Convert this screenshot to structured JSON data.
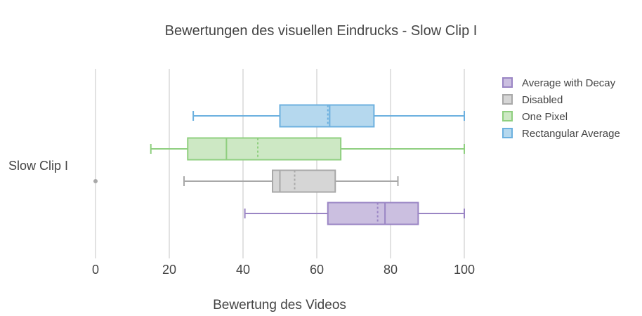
{
  "chart_data": {
    "type": "box",
    "orientation": "horizontal",
    "title": "Bewertungen des visuellen Eindrucks - Slow Clip I",
    "xlabel": "Bewertung des Videos",
    "ylabel": "",
    "category": "Slow Clip I",
    "xlim": [
      0,
      100
    ],
    "xticks": [
      0,
      20,
      40,
      60,
      80,
      100
    ],
    "grid": true,
    "legend_position": "top-right",
    "series": [
      {
        "name": "Average with Decay",
        "color": "#9a85c4",
        "fill": "#cbbfe0",
        "min": 40.5,
        "q1": 63,
        "median": 78.5,
        "mean": 76.5,
        "q3": 87.5,
        "max": 100,
        "outliers": []
      },
      {
        "name": "Disabled",
        "color": "#a8a8a8",
        "fill": "#d6d6d6",
        "min": 24,
        "q1": 48,
        "median": 50,
        "mean": 54,
        "q3": 65,
        "max": 82,
        "outliers": [
          0
        ]
      },
      {
        "name": "One Pixel",
        "color": "#8fcf7f",
        "fill": "#cde8c4",
        "min": 15,
        "q1": 25,
        "median": 35.5,
        "mean": 44,
        "q3": 66.5,
        "max": 100,
        "outliers": []
      },
      {
        "name": "Rectangular Average",
        "color": "#6cb0df",
        "fill": "#b5d8ee",
        "min": 26.5,
        "q1": 50,
        "median": 63.5,
        "mean": 63,
        "q3": 75.5,
        "max": 100,
        "outliers": []
      }
    ]
  }
}
